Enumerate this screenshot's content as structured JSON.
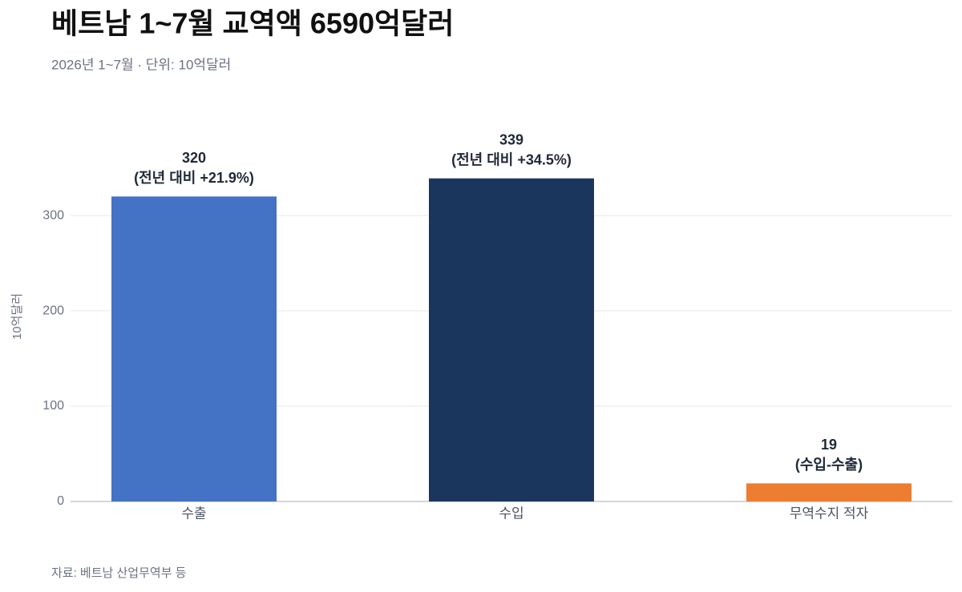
{
  "chart_data": {
    "type": "bar",
    "title": "베트남 1~7월 교역액 6590억달러",
    "subtitle": "2026년 1~7월 · 단위: 10억달러",
    "ylabel": "10억달러",
    "source": "자료: 베트남 산업무역부 등",
    "categories": [
      "수출",
      "수입",
      "무역수지 적자"
    ],
    "values": [
      320,
      339,
      19
    ],
    "notes": [
      "(전년 대비 +21.9%)",
      "(전년 대비 +34.5%)",
      "(수입-수출)"
    ],
    "colors": [
      "#4472c4",
      "#1b365d",
      "#ed7d31"
    ],
    "ylim": [
      0,
      390
    ],
    "yticks": [
      0,
      100,
      200,
      300
    ],
    "grid": true
  }
}
